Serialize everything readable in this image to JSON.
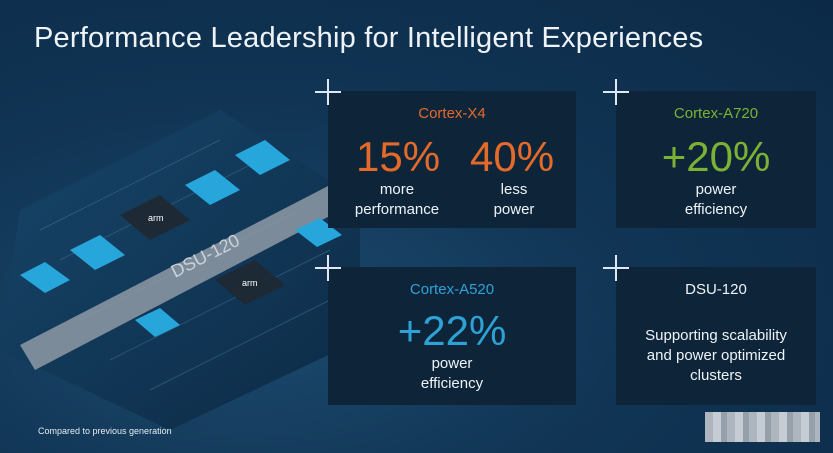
{
  "title": "Performance Leadership for Intelligent Experiences",
  "footnote": "Compared to previous generation",
  "colors": {
    "x4": "#e46a2a",
    "a720": "#7cb233",
    "a520": "#2ea2d6",
    "white": "#eef3f8"
  },
  "chip": {
    "interconnect_label": "DSU-120",
    "chip_brand": "arm"
  },
  "cards": {
    "x4": {
      "name": "Cortex-X4",
      "stat1": {
        "value": "15%",
        "line1": "more",
        "line2": "performance"
      },
      "stat2": {
        "value": "40%",
        "line1": "less",
        "line2": "power"
      }
    },
    "a720": {
      "name": "Cortex-A720",
      "value": "+20%",
      "line1": "power",
      "line2": "efficiency"
    },
    "a520": {
      "name": "Cortex-A520",
      "value": "+22%",
      "line1": "power",
      "line2": "efficiency"
    },
    "dsu": {
      "name": "DSU-120",
      "line1": "Supporting scalability",
      "line2": "and power optimized",
      "line3": "clusters"
    }
  }
}
